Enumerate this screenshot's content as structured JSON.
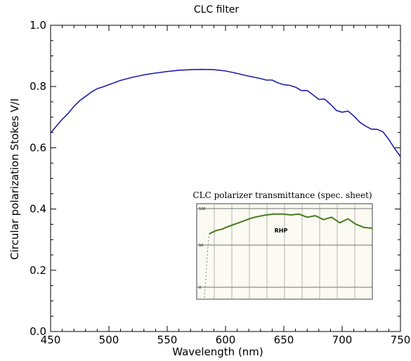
{
  "chart_data": [
    {
      "type": "line",
      "title": "CLC filter",
      "xlabel": "Wavelength (nm)",
      "ylabel": "Circular polarization Stokes V/I",
      "xlim": [
        450,
        750
      ],
      "ylim": [
        0.0,
        1.0
      ],
      "x_ticks": [
        "450",
        "500",
        "550",
        "600",
        "650",
        "700",
        "750"
      ],
      "y_ticks": [
        "0.0",
        "0.2",
        "0.4",
        "0.6",
        "0.8",
        "1.0"
      ],
      "grid": false,
      "line_color": "#1f1fa8",
      "series": [
        {
          "x": [
            450,
            455,
            460,
            465,
            470,
            475,
            480,
            485,
            490,
            495,
            500,
            510,
            520,
            530,
            540,
            550,
            560,
            570,
            580,
            590,
            600,
            610,
            615,
            620,
            625,
            630,
            635,
            640,
            645,
            650,
            655,
            660,
            665,
            670,
            675,
            680,
            685,
            690,
            695,
            700,
            705,
            710,
            715,
            720,
            725,
            730,
            735,
            740,
            745,
            750
          ],
          "y": [
            0.648,
            0.671,
            0.693,
            0.712,
            0.735,
            0.754,
            0.768,
            0.782,
            0.793,
            0.799,
            0.806,
            0.82,
            0.83,
            0.838,
            0.844,
            0.849,
            0.853,
            0.855,
            0.856,
            0.855,
            0.851,
            0.843,
            0.838,
            0.834,
            0.83,
            0.826,
            0.821,
            0.821,
            0.812,
            0.806,
            0.804,
            0.798,
            0.787,
            0.787,
            0.773,
            0.758,
            0.759,
            0.742,
            0.722,
            0.716,
            0.72,
            0.704,
            0.684,
            0.671,
            0.661,
            0.66,
            0.652,
            0.627,
            0.598,
            0.571
          ]
        }
      ]
    },
    {
      "type": "line",
      "title": "CLC polarizer transmittance (spec. sheet)",
      "annotations": [
        "RHP"
      ],
      "y_ticks": [
        "100",
        "50",
        "0"
      ],
      "line_color": "#4a7a1c",
      "series": [
        {
          "x": [
            0.0,
            0.02,
            0.04,
            0.06,
            0.08,
            0.1,
            0.14,
            0.18,
            0.22,
            0.26,
            0.3,
            0.35,
            0.4,
            0.45,
            0.5,
            0.55,
            0.6,
            0.65,
            0.7,
            0.75,
            0.8,
            0.85,
            0.9,
            0.95,
            1.0
          ],
          "y": [
            68,
            70,
            72,
            73,
            74,
            76,
            79,
            82,
            85,
            88,
            90,
            92,
            93,
            93,
            92,
            93,
            89,
            91,
            86,
            89,
            82,
            87,
            80,
            76,
            75
          ]
        }
      ]
    }
  ]
}
